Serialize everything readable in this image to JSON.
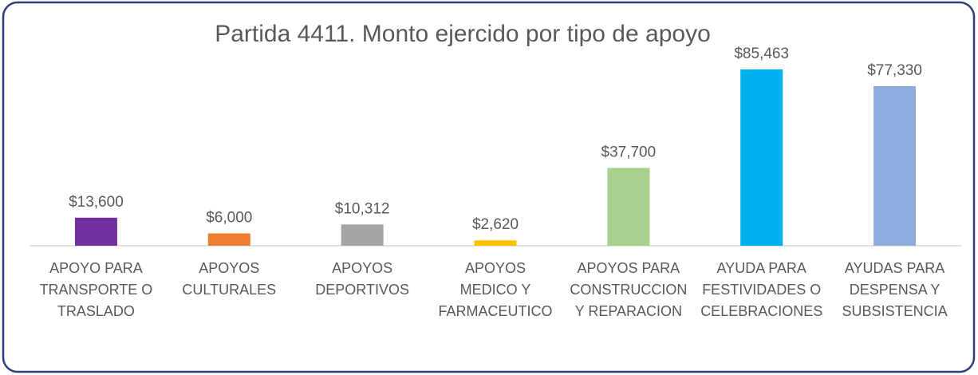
{
  "chart_data": {
    "type": "bar",
    "title": "Partida 4411. Monto ejercido por tipo de apoyo",
    "categories": [
      "APOYO PARA\nTRANSPORTE O\nTRASLADO",
      "APOYOS\nCULTURALES",
      "APOYOS\nDEPORTIVOS",
      "APOYOS\nMEDICO Y\nFARMACEUTICO",
      "APOYOS PARA\nCONSTRUCCION\nY REPARACION",
      "AYUDA PARA\nFESTIVIDADES O\nCELEBRACIONES",
      "AYUDAS PARA\nDESPENSA Y\nSUBSISTENCIA"
    ],
    "values": [
      13600,
      6000,
      10312,
      2620,
      37700,
      85463,
      77330
    ],
    "value_labels": [
      "$13,600",
      "$6,000",
      "$10,312",
      "$2,620",
      "$37,700",
      "$85,463",
      "$77,330"
    ],
    "colors": [
      "#7030a0",
      "#ed7d31",
      "#a5a5a5",
      "#ffc000",
      "#a9d18e",
      "#00b0f0",
      "#8faadc"
    ]
  }
}
